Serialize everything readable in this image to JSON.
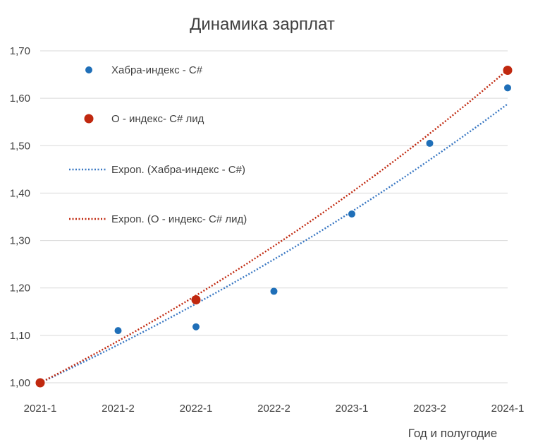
{
  "chart_data": {
    "type": "scatter",
    "title": "Динамика зарплат",
    "xlabel": "Год и полугодие",
    "ylabel": "",
    "categories": [
      "2021-1",
      "2021-2",
      "2022-1",
      "2022-2",
      "2023-1",
      "2023-2",
      "2024-1"
    ],
    "ylim": [
      1.0,
      1.7
    ],
    "yticks": [
      "1,00",
      "1,10",
      "1,20",
      "1,30",
      "1,40",
      "1,50",
      "1,60",
      "1,70"
    ],
    "grid": true,
    "legend_position": "top-left",
    "series": [
      {
        "name": "Хабра-индекс - C#",
        "color": "#1f6fb8",
        "points": [
          {
            "x": "2021-1",
            "y": 1.0
          },
          {
            "x": "2021-2",
            "y": 1.11
          },
          {
            "x": "2022-1",
            "y": 1.118
          },
          {
            "x": "2022-2",
            "y": 1.193
          },
          {
            "x": "2023-1",
            "y": 1.356
          },
          {
            "x": "2023-2",
            "y": 1.505
          },
          {
            "x": "2024-1",
            "y": 1.622
          }
        ]
      },
      {
        "name": "О - индекс- C# лид",
        "color": "#c0280f",
        "points": [
          {
            "x": "2021-1",
            "y": 1.0
          },
          {
            "x": "2022-1",
            "y": 1.175
          },
          {
            "x": "2024-1",
            "y": 1.659
          }
        ]
      }
    ],
    "trendlines": [
      {
        "name": "Expon. (Хабра-индекс - C#)",
        "type": "exponential",
        "color": "#3a78c3",
        "y_start": 1.0,
        "y_end": 1.588
      },
      {
        "name": "Expon. (О - индекс- C# лид)",
        "type": "exponential",
        "color": "#c0280f",
        "y_start": 1.0,
        "y_end": 1.66
      }
    ]
  }
}
